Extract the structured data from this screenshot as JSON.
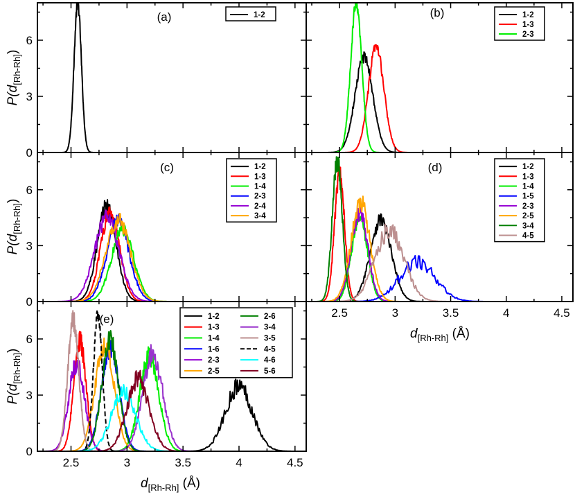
{
  "axis_text": {
    "ylabel_p": "P(",
    "ylabel_d": "d",
    "ylabel_sub": "[Rh-Rh]",
    "ylabel_close": ")",
    "xlabel_d": "d",
    "xlabel_sub": "[Rh-Rh]",
    "xlabel_unit": " (Å)"
  },
  "chart_data": [
    {
      "panel": "a",
      "type": "line",
      "label": "(a)",
      "xlim": [
        2.2,
        4.6
      ],
      "ylim": [
        0,
        8
      ],
      "yticks": [
        0,
        3,
        6
      ],
      "xticks": [
        2.5,
        3,
        3.5,
        4,
        4.5
      ],
      "show_xtick_labels": false,
      "series": [
        {
          "name": "1-2",
          "color": "#000000",
          "dash": false,
          "center": 2.56,
          "width": 0.033,
          "peak": 8.0,
          "rough": 0.04
        }
      ]
    },
    {
      "panel": "b",
      "type": "line",
      "label": "(b)",
      "xlim": [
        2.2,
        4.6
      ],
      "ylim": [
        0,
        8
      ],
      "yticks": [
        0,
        3,
        6
      ],
      "xticks": [
        2.5,
        3,
        3.5,
        4,
        4.5
      ],
      "show_xtick_labels": false,
      "series": [
        {
          "name": "1-2",
          "color": "#000000",
          "dash": false,
          "center": 2.72,
          "width": 0.08,
          "peak": 5.1,
          "rough": 0.06
        },
        {
          "name": "1-3",
          "color": "#ff0000",
          "dash": false,
          "center": 2.83,
          "width": 0.07,
          "peak": 5.6,
          "rough": 0.06
        },
        {
          "name": "2-3",
          "color": "#00ee00",
          "dash": false,
          "center": 2.65,
          "width": 0.05,
          "peak": 7.9,
          "rough": 0.05
        }
      ]
    },
    {
      "panel": "c",
      "type": "line",
      "label": "(c)",
      "xlim": [
        2.2,
        4.6
      ],
      "ylim": [
        0,
        8
      ],
      "yticks": [
        0,
        3,
        6
      ],
      "xticks": [
        2.5,
        3,
        3.5,
        4,
        4.5
      ],
      "show_xtick_labels": false,
      "series": [
        {
          "name": "1-2",
          "color": "#000000",
          "dash": false,
          "center": 2.82,
          "width": 0.085,
          "peak": 5.1,
          "rough": 0.1
        },
        {
          "name": "1-3",
          "color": "#ff0000",
          "dash": false,
          "center": 2.85,
          "width": 0.085,
          "peak": 4.8,
          "rough": 0.1
        },
        {
          "name": "1-4",
          "color": "#00ee00",
          "dash": false,
          "center": 2.96,
          "width": 0.1,
          "peak": 3.8,
          "rough": 0.1
        },
        {
          "name": "2-3",
          "color": "#0000ff",
          "dash": false,
          "center": 2.92,
          "width": 0.1,
          "peak": 4.3,
          "rough": 0.1
        },
        {
          "name": "2-4",
          "color": "#9400d3",
          "dash": false,
          "center": 2.82,
          "width": 0.11,
          "peak": 4.5,
          "rough": 0.1
        },
        {
          "name": "3-4",
          "color": "#ffa500",
          "dash": false,
          "center": 2.92,
          "width": 0.11,
          "peak": 4.4,
          "rough": 0.1
        }
      ]
    },
    {
      "panel": "d",
      "type": "line",
      "label": "(d)",
      "xlim": [
        2.2,
        4.6
      ],
      "ylim": [
        0,
        8
      ],
      "yticks": [
        0,
        3,
        6
      ],
      "xticks": [
        2.5,
        3,
        3.5,
        4,
        4.5
      ],
      "show_xtick_labels": true,
      "series": [
        {
          "name": "1-2",
          "color": "#000000",
          "dash": false,
          "center": 2.87,
          "width": 0.095,
          "peak": 4.4,
          "rough": 0.1
        },
        {
          "name": "1-3",
          "color": "#ff0000",
          "dash": false,
          "center": 2.5,
          "width": 0.045,
          "peak": 6.9,
          "rough": 0.08
        },
        {
          "name": "1-4",
          "color": "#00ee00",
          "dash": false,
          "center": 2.68,
          "width": 0.07,
          "peak": 4.6,
          "rough": 0.1
        },
        {
          "name": "1-5",
          "color": "#0000ff",
          "dash": false,
          "center": 3.2,
          "width": 0.16,
          "peak": 2.1,
          "rough": 0.2
        },
        {
          "name": "2-3",
          "color": "#9400d3",
          "dash": false,
          "center": 2.68,
          "width": 0.075,
          "peak": 4.8,
          "rough": 0.1
        },
        {
          "name": "2-5",
          "color": "#ffa500",
          "dash": false,
          "center": 2.69,
          "width": 0.085,
          "peak": 5.3,
          "rough": 0.1
        },
        {
          "name": "3-4",
          "color": "#008000",
          "dash": false,
          "center": 2.48,
          "width": 0.045,
          "peak": 7.6,
          "rough": 0.08
        },
        {
          "name": "4-5",
          "color": "#bc8f8f",
          "dash": false,
          "center": 2.95,
          "width": 0.13,
          "peak": 3.8,
          "rough": 0.15
        }
      ]
    },
    {
      "panel": "e",
      "type": "line",
      "label": "(e)",
      "xlim": [
        2.2,
        4.6
      ],
      "ylim": [
        0,
        8
      ],
      "yticks": [
        0,
        3,
        6
      ],
      "xticks": [
        2.5,
        3,
        3.5,
        4,
        4.5
      ],
      "show_xtick_labels": true,
      "series": [
        {
          "name": "1-2",
          "color": "#000000",
          "dash": false,
          "center": 4.0,
          "width": 0.12,
          "peak": 3.5,
          "rough": 0.15
        },
        {
          "name": "1-3",
          "color": "#ff0000",
          "dash": false,
          "center": 2.58,
          "width": 0.055,
          "peak": 5.9,
          "rough": 0.1
        },
        {
          "name": "1-4",
          "color": "#00ee00",
          "dash": false,
          "center": 3.2,
          "width": 0.085,
          "peak": 5.1,
          "rough": 0.12
        },
        {
          "name": "1-6",
          "color": "#0000ff",
          "dash": false,
          "center": 2.85,
          "width": 0.08,
          "peak": 5.5,
          "rough": 0.1
        },
        {
          "name": "2-3",
          "color": "#9400d3",
          "dash": false,
          "center": 2.55,
          "width": 0.07,
          "peak": 4.7,
          "rough": 0.12
        },
        {
          "name": "2-5",
          "color": "#ffa500",
          "dash": false,
          "center": 2.8,
          "width": 0.085,
          "peak": 5.7,
          "rough": 0.1
        },
        {
          "name": "2-6",
          "color": "#008000",
          "dash": false,
          "center": 2.85,
          "width": 0.075,
          "peak": 5.9,
          "rough": 0.1
        },
        {
          "name": "3-4",
          "color": "#9932cc",
          "dash": false,
          "center": 3.23,
          "width": 0.09,
          "peak": 5.2,
          "rough": 0.12
        },
        {
          "name": "3-5",
          "color": "#bc8f8f",
          "dash": false,
          "center": 2.52,
          "width": 0.05,
          "peak": 7.0,
          "rough": 0.08
        },
        {
          "name": "4-5",
          "color": "#000000",
          "dash": true,
          "center": 2.74,
          "width": 0.04,
          "peak": 7.3,
          "rough": 0.05
        },
        {
          "name": "4-6",
          "color": "#00ffff",
          "dash": false,
          "center": 2.97,
          "width": 0.11,
          "peak": 3.1,
          "rough": 0.15
        },
        {
          "name": "5-6",
          "color": "#800020",
          "dash": false,
          "center": 3.1,
          "width": 0.1,
          "peak": 3.9,
          "rough": 0.15
        }
      ]
    }
  ]
}
